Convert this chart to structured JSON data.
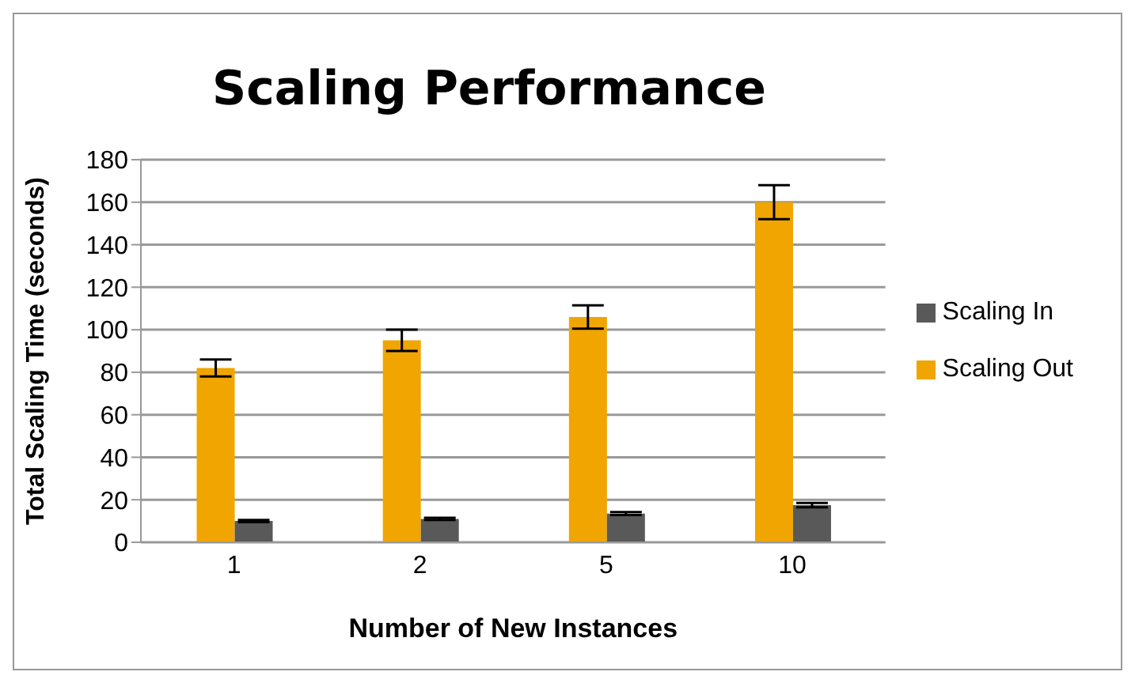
{
  "chart_data": {
    "type": "bar",
    "title": "Scaling Performance",
    "xlabel": "Number of New Instances",
    "ylabel": "Total Scaling Time (seconds)",
    "categories": [
      "1",
      "2",
      "5",
      "10"
    ],
    "series": [
      {
        "name": "Scaling Out",
        "color": "#f0a500",
        "values": [
          82,
          95,
          106,
          160
        ],
        "errors": [
          4,
          5,
          5.5,
          8
        ]
      },
      {
        "name": "Scaling In",
        "color": "#595959",
        "values": [
          10,
          11,
          13.5,
          17.5
        ],
        "errors": [
          0.5,
          0.5,
          0.7,
          1
        ]
      }
    ],
    "ylim": [
      0,
      180
    ],
    "yticks": [
      0,
      20,
      40,
      60,
      80,
      100,
      120,
      140,
      160,
      180
    ],
    "grid": "y",
    "legend": "right"
  }
}
